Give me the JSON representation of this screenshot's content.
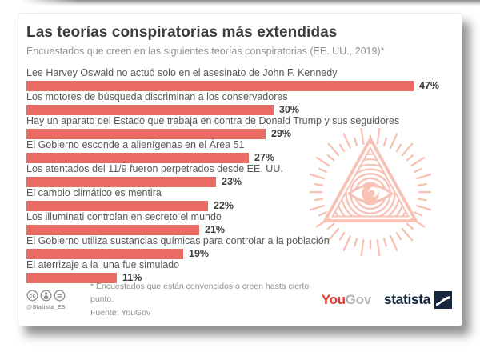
{
  "infographic": {
    "title": "Las teorías conspiratorias más extendidas",
    "subtitle": "Encuestados que creen en las siguientes teorías conspiratorias (EE. UU., 2019)*"
  },
  "chart_data": {
    "type": "bar",
    "orientation": "horizontal",
    "title": "Las teorías conspiratorias más extendidas",
    "subtitle": "Encuestados que creen en las siguientes teorías conspiratorias (EE. UU., 2019)*",
    "categories": [
      "Lee Harvey Oswald no actuó solo en el asesinato de John F. Kennedy",
      "Los motores de búsqueda discriminan a los conservadores",
      "Hay un aparato del Estado que trabaja en contra de Donald Trump y sus seguidores",
      "El Gobierno esconde a alienígenas en el Área 51",
      "Los atentados del 11/9 fueron perpetrados desde EE. UU.",
      "El cambio climático es mentira",
      "Los illuminati controlan en secreto el mundo",
      "El Gobierno utiliza sustancias químicas para controlar a la población",
      "El aterrizaje a la luna fue simulado"
    ],
    "values": [
      47,
      30,
      29,
      27,
      23,
      22,
      21,
      19,
      11
    ],
    "value_labels": [
      "47%",
      "30%",
      "29%",
      "27%",
      "23%",
      "22%",
      "21%",
      "19%",
      "11%"
    ],
    "xlim": [
      0,
      54
    ],
    "grid": false,
    "legend": false,
    "bar_color": "#e96b63"
  },
  "footer": {
    "license": {
      "icons": [
        "cc-icon",
        "cc-by-icon",
        "cc-nd-icon"
      ],
      "handle": "@Statista_ES"
    },
    "note": "* Encuestados que están convencidos o creen hasta cierto punto.",
    "source": "Fuente: YouGov",
    "logos": {
      "yougov": {
        "you": "You",
        "gov": "Gov"
      },
      "statista": "statista"
    }
  },
  "watermark": {
    "name": "illuminati-eye-pyramid",
    "color": "#f9c0b4"
  },
  "colors": {
    "bar": "#e96b63",
    "title": "#3c3c3c",
    "subtitle": "#949494",
    "label": "#595959",
    "value": "#3e3e3e",
    "watermark": "#f9c0b4",
    "yougov_red": "#e23a33",
    "yougov_gray": "#b4b4b4",
    "statista_navy": "#16263c",
    "cc_gray": "#8a8a8a"
  }
}
